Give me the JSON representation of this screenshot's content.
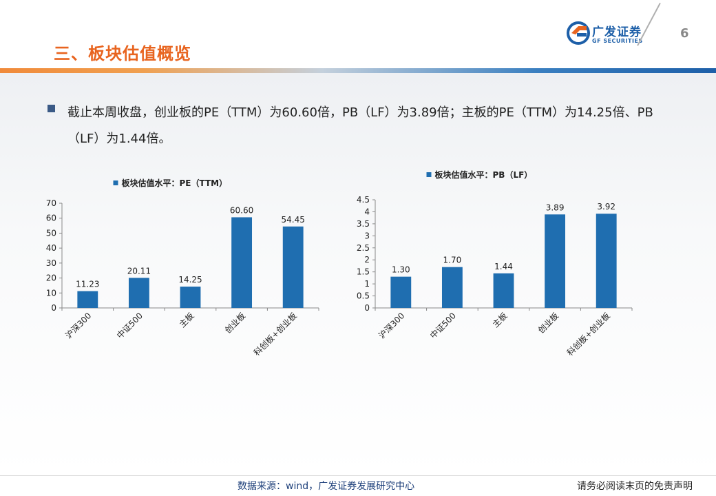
{
  "header": {
    "title": "三、板块估值概览",
    "page_number": "6",
    "logo_cn": "广发证券",
    "logo_en": "GF SECURITIES"
  },
  "bullet": {
    "text": "截止本周收盘，创业板的PE（TTM）为60.60倍，PB（LF）为3.89倍；主板的PE（TTM）为14.25倍、PB（LF）为1.44倍。"
  },
  "footer": {
    "source": "数据来源：wind，广发证券发展研究中心",
    "disclaimer": "请务必阅读末页的免责声明"
  },
  "colors": {
    "bar": "#1f6eb0",
    "title": "#e8641f",
    "brand": "#1d5fa8"
  },
  "chart_data": [
    {
      "type": "bar",
      "title": "",
      "legend": "板块估值水平：PE（TTM）",
      "categories": [
        "沪深300",
        "中证500",
        "主板",
        "创业板",
        "科创板+创业板"
      ],
      "values": [
        11.23,
        20.11,
        14.25,
        60.6,
        54.45
      ],
      "value_labels": [
        "11.23",
        "20.11",
        "14.25",
        "60.60",
        "54.45"
      ],
      "ylim": [
        0,
        70
      ],
      "yticks": [
        0,
        10,
        20,
        30,
        40,
        50,
        60,
        70
      ],
      "ytick_labels": [
        "0",
        "10",
        "20",
        "30",
        "40",
        "50",
        "60",
        "70"
      ],
      "legend_position": "top-center",
      "grid": false
    },
    {
      "type": "bar",
      "title": "",
      "legend": "板块估值水平：PB（LF）",
      "categories": [
        "沪深300",
        "中证500",
        "主板",
        "创业板",
        "科创板+创业板"
      ],
      "values": [
        1.3,
        1.7,
        1.44,
        3.89,
        3.92
      ],
      "value_labels": [
        "1.30",
        "1.70",
        "1.44",
        "3.89",
        "3.92"
      ],
      "ylim": [
        0,
        4.5
      ],
      "yticks": [
        0,
        0.5,
        1,
        1.5,
        2,
        2.5,
        3,
        3.5,
        4,
        4.5
      ],
      "ytick_labels": [
        "0",
        "0.5",
        "1",
        "1.5",
        "2",
        "2.5",
        "3",
        "3.5",
        "4",
        "4.5"
      ],
      "legend_position": "top-center",
      "grid": false
    }
  ]
}
